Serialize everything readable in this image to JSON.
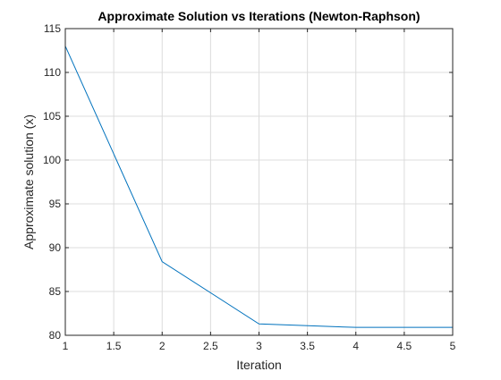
{
  "chart_data": {
    "type": "line",
    "title": "Approximate Solution vs Iterations (Newton-Raphson)",
    "xlabel": "Iteration",
    "ylabel": "Approximate solution (x)",
    "xlim": [
      1,
      5
    ],
    "ylim": [
      80,
      115
    ],
    "x_ticks": [
      1,
      1.5,
      2,
      2.5,
      3,
      3.5,
      4,
      4.5,
      5
    ],
    "x_tick_labels": [
      "1",
      "1.5",
      "2",
      "2.5",
      "3",
      "3.5",
      "4",
      "4.5",
      "5"
    ],
    "y_ticks": [
      80,
      85,
      90,
      95,
      100,
      105,
      110,
      115
    ],
    "y_tick_labels": [
      "80",
      "85",
      "90",
      "95",
      "100",
      "105",
      "110",
      "115"
    ],
    "grid": true,
    "series": [
      {
        "x": [
          1,
          2,
          3,
          4,
          5
        ],
        "values": [
          113,
          88.4,
          81.3,
          80.9,
          80.9
        ],
        "color": "#0072BD"
      }
    ]
  }
}
